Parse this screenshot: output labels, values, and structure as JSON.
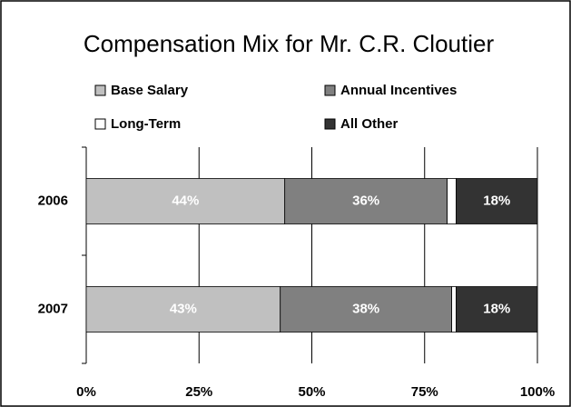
{
  "chart_data": {
    "type": "bar",
    "orientation": "horizontal",
    "stacked": true,
    "title": "Compensation Mix for Mr. C.R. Cloutier",
    "categories": [
      "2006",
      "2007"
    ],
    "series": [
      {
        "name": "Base Salary",
        "color": "#c0c0c0",
        "values": [
          44,
          43
        ],
        "value_labels": [
          "44%",
          "43%"
        ]
      },
      {
        "name": "Annual Incentives",
        "color": "#808080",
        "values": [
          36,
          38
        ],
        "value_labels": [
          "36%",
          "38%"
        ]
      },
      {
        "name": "Long-Term",
        "color": "#ffffff",
        "values": [
          2,
          1
        ]
      },
      {
        "name": "All Other",
        "color": "#333333",
        "values": [
          18,
          18
        ],
        "value_labels": [
          "18%",
          "18%"
        ]
      }
    ],
    "xlim": [
      0,
      100
    ],
    "xticks": [
      {
        "value": 0,
        "label": "0%"
      },
      {
        "value": 25,
        "label": "25%"
      },
      {
        "value": 50,
        "label": "50%"
      },
      {
        "value": 75,
        "label": "75%"
      },
      {
        "value": 100,
        "label": "100%"
      }
    ],
    "grid": true
  }
}
